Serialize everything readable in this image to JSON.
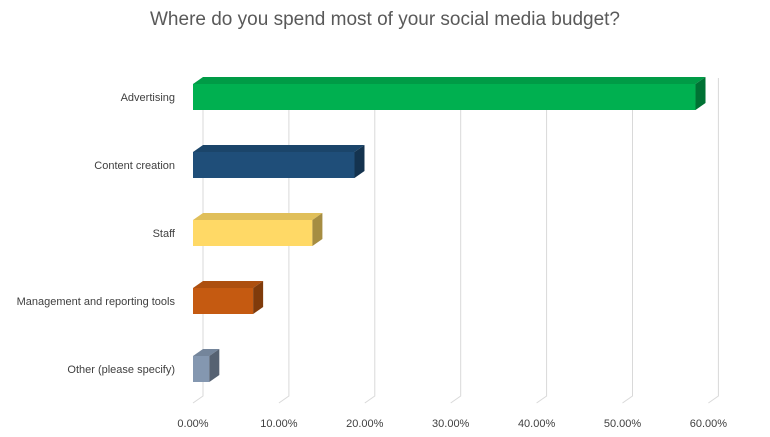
{
  "chart_data": {
    "type": "bar",
    "orientation": "horizontal",
    "style": "3d",
    "title": "Where do you spend most of your social media budget?",
    "xlabel": "",
    "ylabel": "",
    "categories": [
      "Advertising",
      "Content creation",
      "Staff",
      "Management and reporting tools",
      "Other (please specify)"
    ],
    "values": [
      0.585,
      0.188,
      0.139,
      0.07,
      0.019
    ],
    "colors": [
      "#00B050",
      "#1F4E79",
      "#FFD966",
      "#C55A11",
      "#8497B0"
    ],
    "xlim": [
      0,
      0.6
    ],
    "xticks": [
      0,
      0.1,
      0.2,
      0.3,
      0.4,
      0.5,
      0.6
    ],
    "xtick_labels": [
      "0.00%",
      "10.00%",
      "20.00%",
      "30.00%",
      "40.00%",
      "50.00%",
      "60.00%"
    ],
    "grid": true,
    "legend": "none"
  }
}
